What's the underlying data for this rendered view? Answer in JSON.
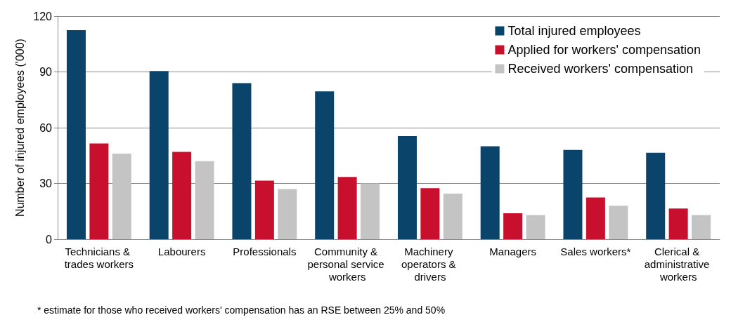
{
  "chart_data": {
    "type": "bar",
    "ylabel": "Number of injured employees ('000)",
    "categories": [
      "Technicians & trades workers",
      "Labourers",
      "Professionals",
      "Community & personal service workers",
      "Machinery operators & drivers",
      "Managers",
      "Sales workers*",
      "Clerical & administrative workers"
    ],
    "series": [
      {
        "name": "Total injured employees",
        "color": "#0b446b",
        "values": [
          112.5,
          90.5,
          84,
          79.5,
          55.5,
          50,
          48,
          46.5
        ]
      },
      {
        "name": "Applied for workers' compensation",
        "color": "#c8102e",
        "values": [
          51.5,
          47,
          31.5,
          33.5,
          27.5,
          14,
          22.5,
          16.5
        ]
      },
      {
        "name": "Received workers' compensation",
        "color": "#c4c4c4",
        "values": [
          46,
          42,
          27,
          30,
          24.5,
          13,
          18,
          13
        ]
      }
    ],
    "ylim": [
      0,
      120
    ],
    "yticks": [
      0,
      30,
      60,
      90,
      120
    ],
    "grid": "y",
    "legend": "top right",
    "annotations": [
      "* estimate for those who received workers' compensation has an RSE between 25% and 50%"
    ]
  }
}
